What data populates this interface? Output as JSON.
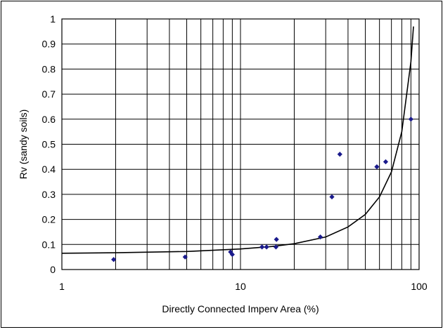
{
  "chart_data": {
    "type": "scatter",
    "xlabel": "Directly Connected Imperv Area (%)",
    "ylabel": "Rv (sandy soils)",
    "x_scale": "log",
    "xlim": [
      1,
      100
    ],
    "ylim": [
      0,
      1
    ],
    "x_ticks": [
      1,
      10,
      100
    ],
    "x_tick_labels": [
      "1",
      "10",
      "100"
    ],
    "x_minor_gridlines": [
      2,
      3,
      4,
      5,
      6,
      7,
      8,
      9,
      20,
      30,
      40,
      50,
      60,
      70,
      80,
      90
    ],
    "y_ticks": [
      0,
      0.1,
      0.2,
      0.3,
      0.4,
      0.5,
      0.6,
      0.7,
      0.8,
      0.9,
      1
    ],
    "y_tick_labels": [
      "0",
      "0.1",
      "0.2",
      "0.3",
      "0.4",
      "0.5",
      "0.6",
      "0.7",
      "0.8",
      "0.9",
      "1"
    ],
    "grid": true,
    "legend": "none",
    "series": [
      {
        "kind": "points",
        "marker": "diamond",
        "color": "#1a1a8c",
        "x": [
          1.95,
          4.9,
          8.8,
          9.0,
          13.2,
          14.0,
          15.8,
          15.9,
          28.0,
          32.5,
          36.0,
          58.0,
          65.0,
          90.0
        ],
        "y": [
          0.04,
          0.05,
          0.07,
          0.06,
          0.09,
          0.09,
          0.09,
          0.12,
          0.13,
          0.29,
          0.46,
          0.41,
          0.43,
          0.6
        ]
      },
      {
        "kind": "curve",
        "color": "#000000",
        "x": [
          1,
          2,
          5,
          10,
          15,
          20,
          30,
          40,
          50,
          60,
          70,
          80,
          90,
          93
        ],
        "y": [
          0.065,
          0.067,
          0.072,
          0.082,
          0.092,
          0.103,
          0.13,
          0.17,
          0.22,
          0.29,
          0.39,
          0.55,
          0.83,
          0.97
        ]
      }
    ]
  }
}
